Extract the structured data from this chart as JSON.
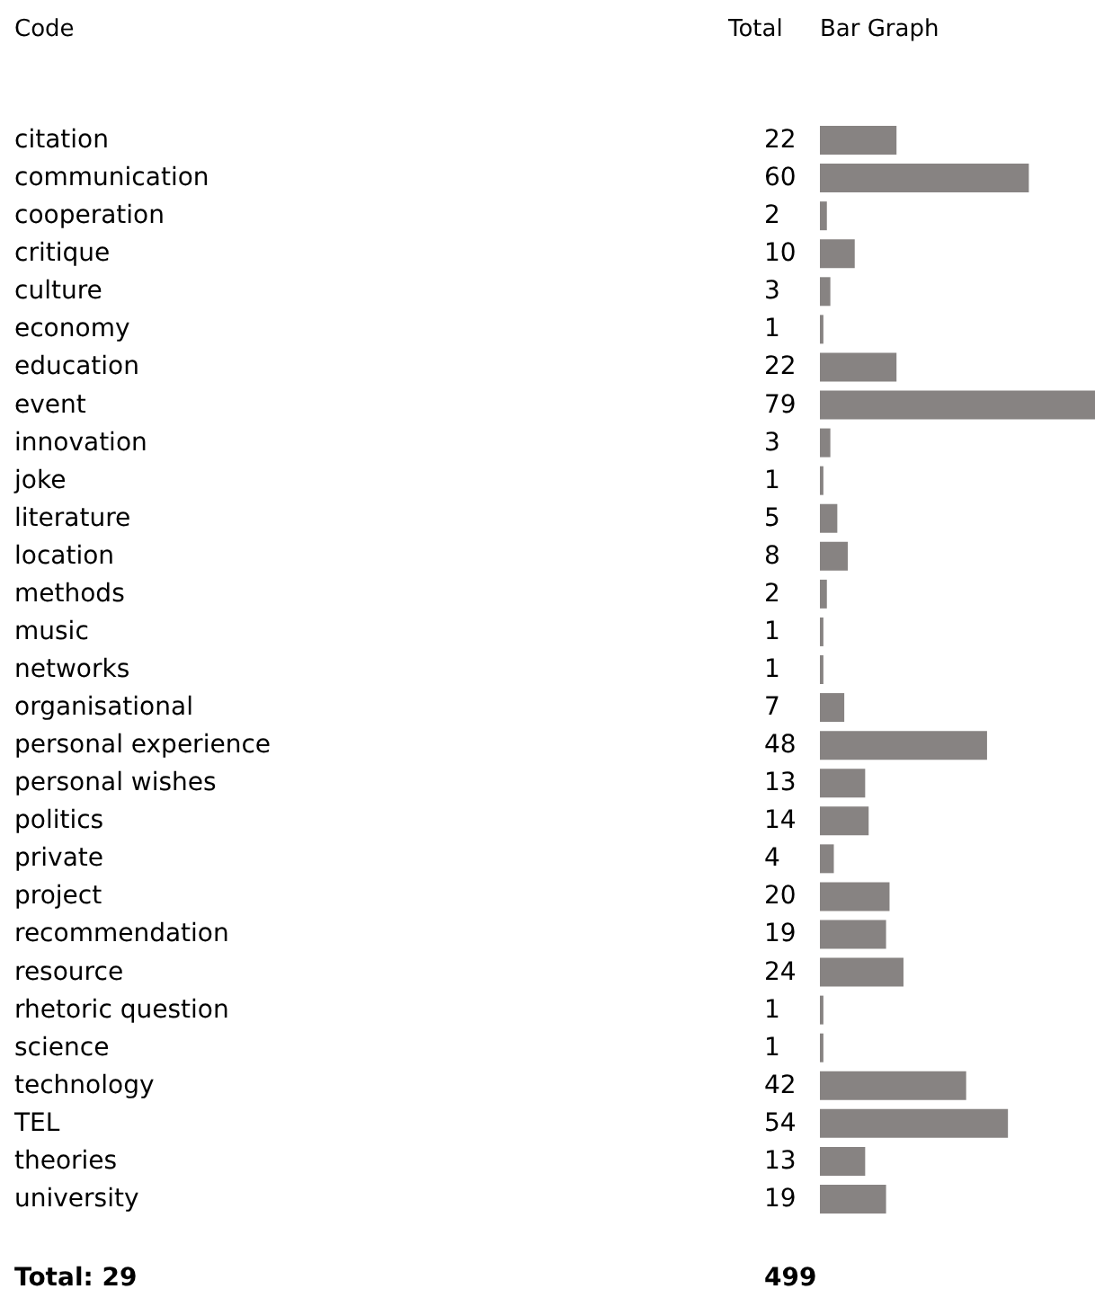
{
  "chart_data": {
    "type": "bar",
    "orientation": "horizontal",
    "categories": [
      "citation",
      "communication",
      "cooperation",
      "critique",
      "culture",
      "economy",
      "education",
      "event",
      "innovation",
      "joke",
      "literature",
      "location",
      "methods",
      "music",
      "networks",
      "organisational",
      "personal experience",
      "personal wishes",
      "politics",
      "private",
      "project",
      "recommendation",
      "resource",
      "rhetoric question",
      "science",
      "technology",
      "TEL",
      "theories",
      "university"
    ],
    "values": [
      22,
      60,
      2,
      10,
      3,
      1,
      22,
      79,
      3,
      1,
      5,
      8,
      2,
      1,
      1,
      7,
      48,
      13,
      14,
      4,
      20,
      19,
      24,
      1,
      1,
      42,
      54,
      13,
      19
    ],
    "color": "#878382",
    "data_labels": true,
    "annotations": [
      "Code",
      "Total",
      "Bar Graph",
      "Total: 29",
      "499"
    ]
  }
}
